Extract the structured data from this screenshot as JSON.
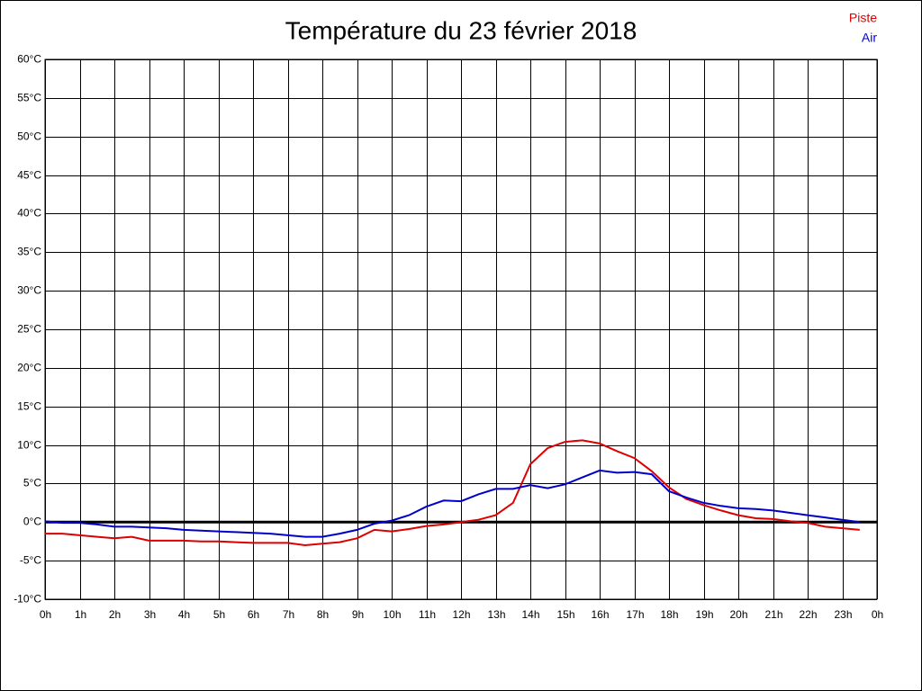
{
  "chart_data": {
    "type": "line",
    "title": "Température du 23 février 2018",
    "x": [
      0,
      0.5,
      1,
      1.5,
      2,
      2.5,
      3,
      3.5,
      4,
      4.5,
      5,
      5.5,
      6,
      6.5,
      7,
      7.5,
      8,
      8.5,
      9,
      9.5,
      10,
      10.5,
      11,
      11.5,
      12,
      12.5,
      13,
      13.5,
      14,
      14.5,
      15,
      15.5,
      16,
      16.5,
      17,
      17.5,
      18,
      18.5,
      19,
      19.5,
      20,
      20.5,
      21,
      21.5,
      22,
      22.5,
      23,
      23.5
    ],
    "series": [
      {
        "name": "Piste",
        "color": "#dd0000",
        "values": [
          -1.5,
          -1.5,
          -1.7,
          -1.9,
          -2.1,
          -1.9,
          -2.4,
          -2.4,
          -2.4,
          -2.5,
          -2.5,
          -2.6,
          -2.7,
          -2.7,
          -2.7,
          -3.0,
          -2.8,
          -2.6,
          -2.1,
          -1.0,
          -1.2,
          -0.9,
          -0.5,
          -0.3,
          0,
          0.3,
          0.9,
          2.5,
          7.5,
          9.6,
          10.4,
          10.6,
          10.2,
          9.2,
          8.3,
          6.6,
          4.5,
          3.0,
          2.2,
          1.5,
          0.9,
          0.5,
          0.4,
          0.1,
          -0.1,
          -0.6,
          -0.8,
          -1.0
        ]
      },
      {
        "name": "Air",
        "color": "#0000cc",
        "values": [
          0.1,
          -0.1,
          -0.1,
          -0.3,
          -0.6,
          -0.6,
          -0.7,
          -0.8,
          -1.0,
          -1.1,
          -1.2,
          -1.3,
          -1.4,
          -1.5,
          -1.7,
          -1.9,
          -1.9,
          -1.5,
          -1.0,
          -0.2,
          0.2,
          0.9,
          2.0,
          2.8,
          2.7,
          3.6,
          4.3,
          4.3,
          4.8,
          4.4,
          4.9,
          5.8,
          6.7,
          6.4,
          6.5,
          6.2,
          4.0,
          3.2,
          2.5,
          2.1,
          1.8,
          1.7,
          1.5,
          1.2,
          0.9,
          0.6,
          0.3,
          0.0
        ]
      }
    ],
    "xlim": [
      0,
      24
    ],
    "xticks": [
      {
        "value": 0,
        "label": "0h"
      },
      {
        "value": 1,
        "label": "1h"
      },
      {
        "value": 2,
        "label": "2h"
      },
      {
        "value": 3,
        "label": "3h"
      },
      {
        "value": 4,
        "label": "4h"
      },
      {
        "value": 5,
        "label": "5h"
      },
      {
        "value": 6,
        "label": "6h"
      },
      {
        "value": 7,
        "label": "7h"
      },
      {
        "value": 8,
        "label": "8h"
      },
      {
        "value": 9,
        "label": "9h"
      },
      {
        "value": 10,
        "label": "10h"
      },
      {
        "value": 11,
        "label": "11h"
      },
      {
        "value": 12,
        "label": "12h"
      },
      {
        "value": 13,
        "label": "13h"
      },
      {
        "value": 14,
        "label": "14h"
      },
      {
        "value": 15,
        "label": "15h"
      },
      {
        "value": 16,
        "label": "16h"
      },
      {
        "value": 17,
        "label": "17h"
      },
      {
        "value": 18,
        "label": "18h"
      },
      {
        "value": 19,
        "label": "19h"
      },
      {
        "value": 20,
        "label": "20h"
      },
      {
        "value": 21,
        "label": "21h"
      },
      {
        "value": 22,
        "label": "22h"
      },
      {
        "value": 23,
        "label": "23h"
      },
      {
        "value": 24,
        "label": "0h"
      }
    ],
    "ylim": [
      -10,
      60
    ],
    "yticks": [
      {
        "value": -10,
        "label": "-10°C"
      },
      {
        "value": -5,
        "label": "-5°C"
      },
      {
        "value": 0,
        "label": "0°C"
      },
      {
        "value": 5,
        "label": "5°C"
      },
      {
        "value": 10,
        "label": "10°C"
      },
      {
        "value": 15,
        "label": "15°C"
      },
      {
        "value": 20,
        "label": "20°C"
      },
      {
        "value": 25,
        "label": "25°C"
      },
      {
        "value": 30,
        "label": "30°C"
      },
      {
        "value": 35,
        "label": "35°C"
      },
      {
        "value": 40,
        "label": "40°C"
      },
      {
        "value": 45,
        "label": "45°C"
      },
      {
        "value": 50,
        "label": "50°C"
      },
      {
        "value": 55,
        "label": "55°C"
      },
      {
        "value": 60,
        "label": "60°C"
      }
    ],
    "grid": true,
    "legend": "top-right"
  }
}
